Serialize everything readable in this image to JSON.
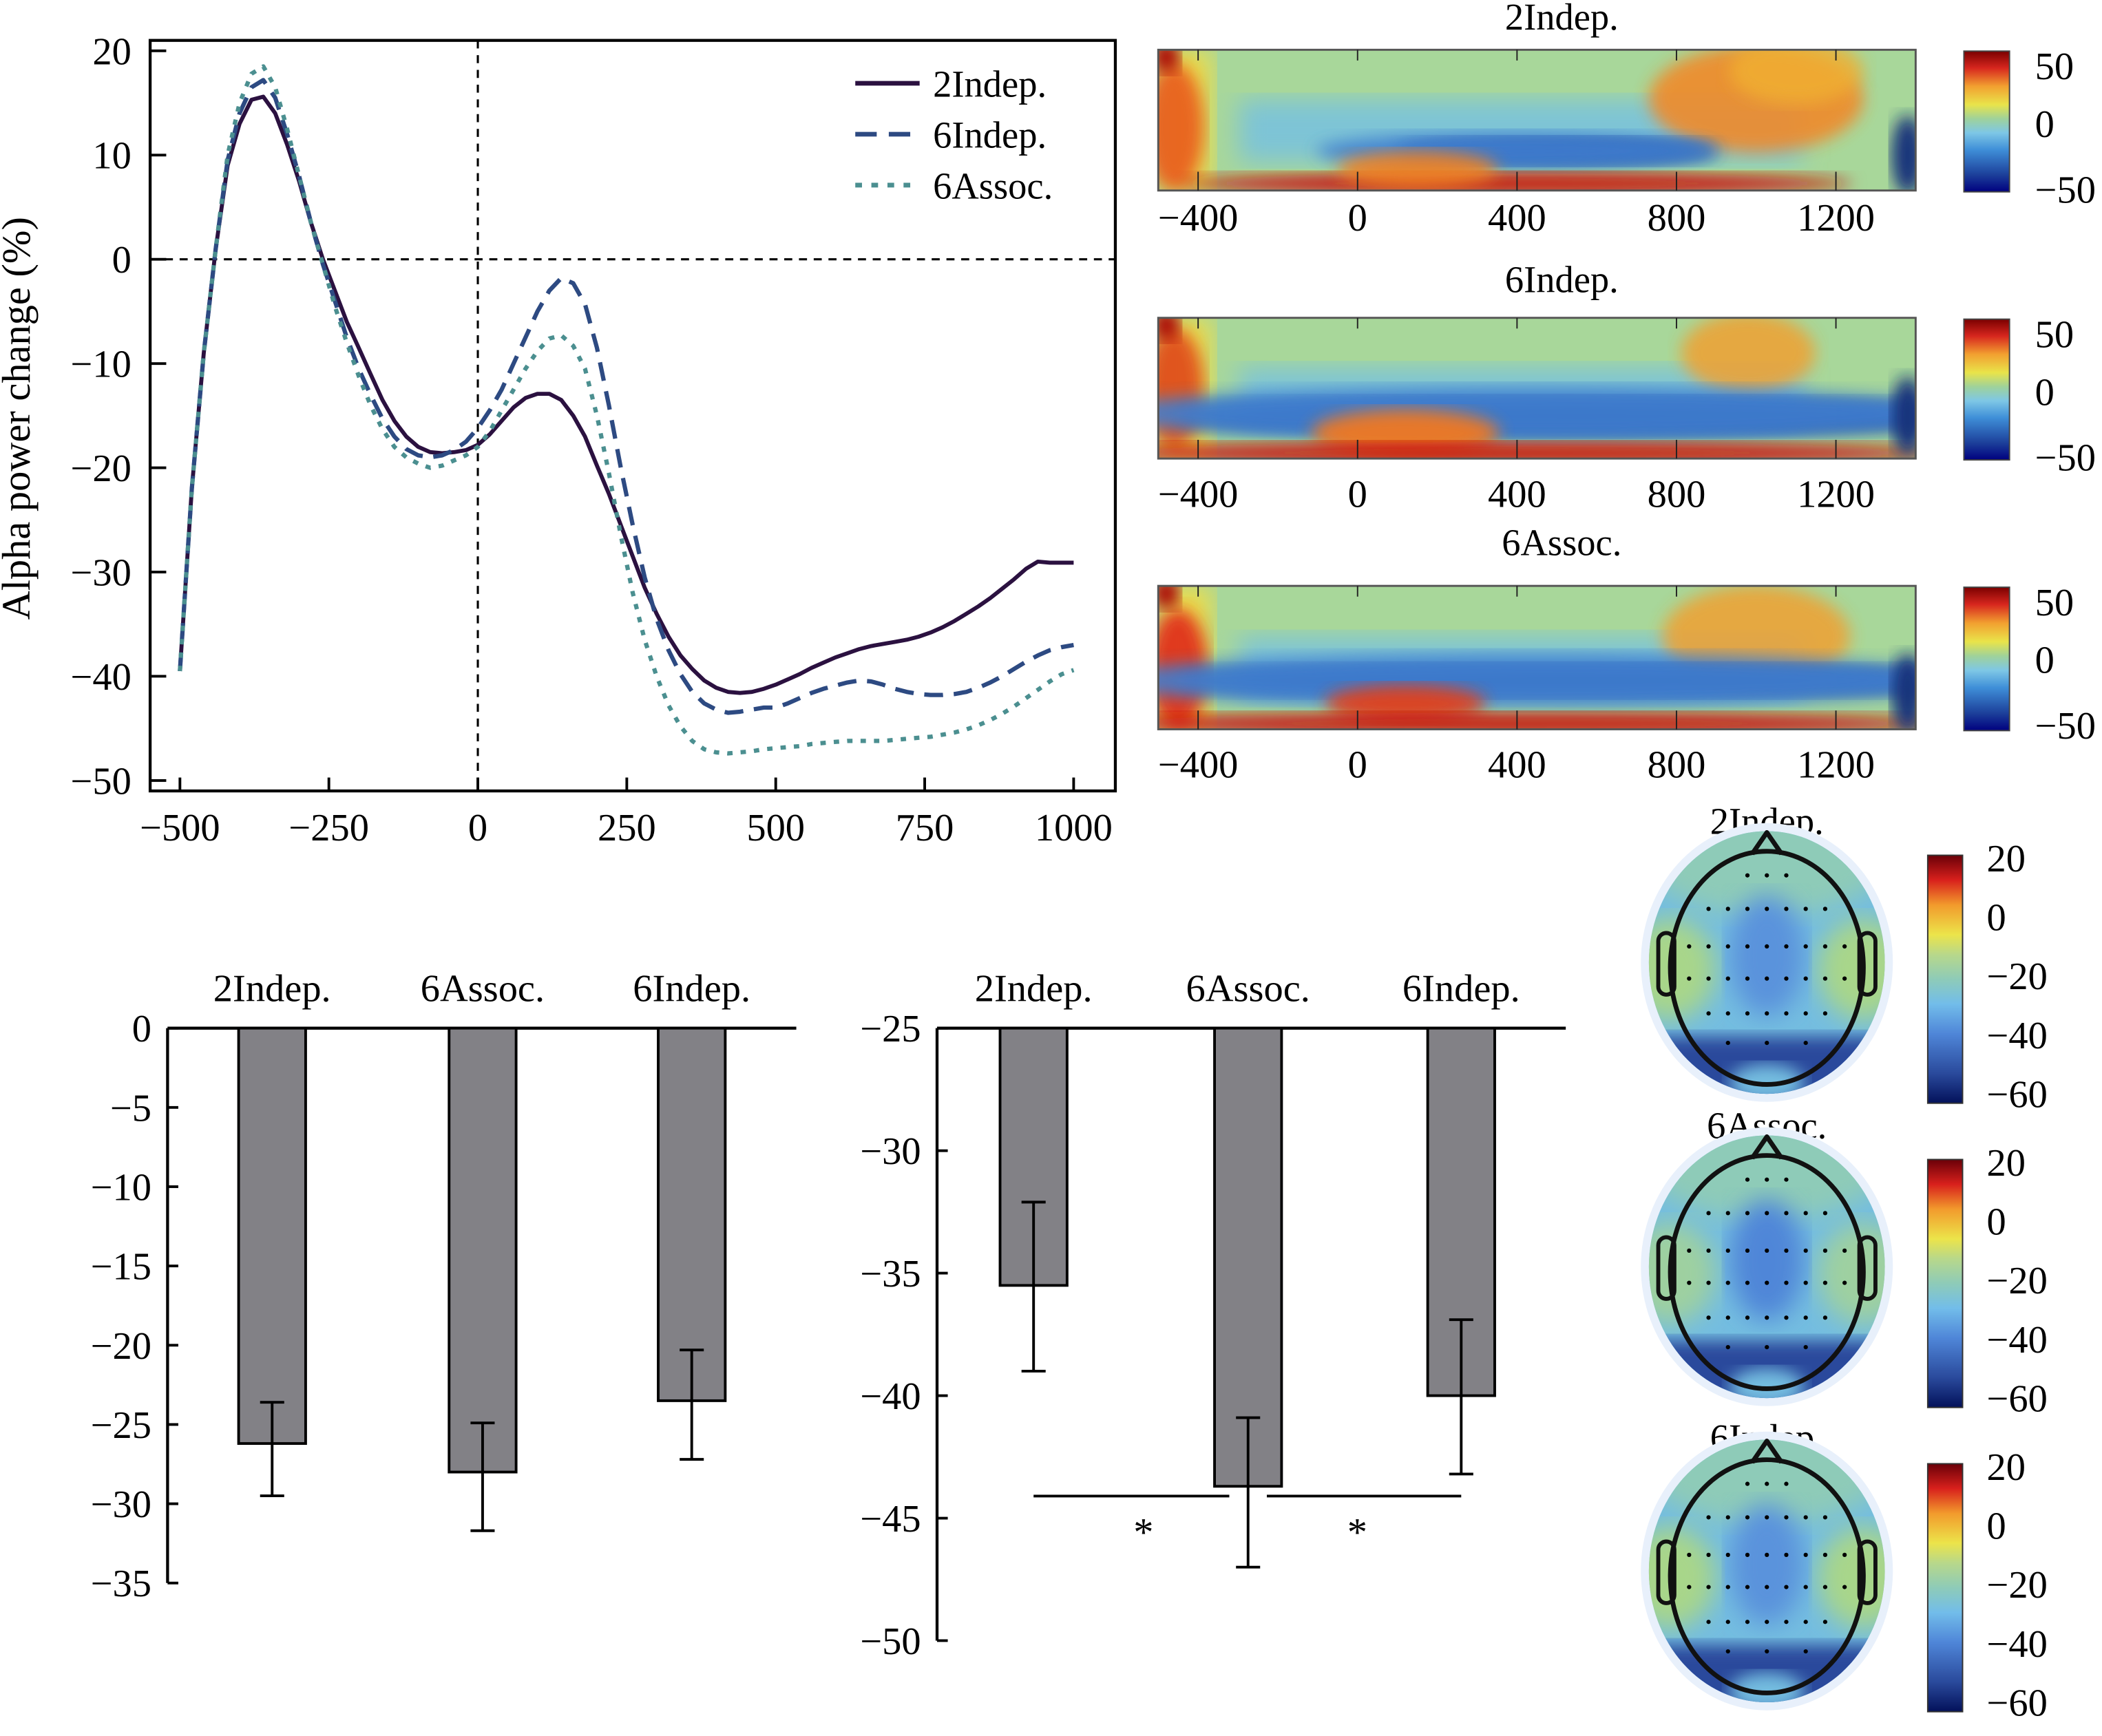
{
  "chart_data": [
    {
      "id": "line",
      "type": "line",
      "title": "",
      "xlabel": "",
      "ylabel": "Alpha power change (%)",
      "xlim": [
        -550,
        1070
      ],
      "ylim": [
        -51,
        21
      ],
      "xticks": [
        -500,
        -250,
        0,
        250,
        500,
        750,
        1000
      ],
      "yticks": [
        20,
        10,
        0,
        -10,
        -20,
        -30,
        -40,
        -50
      ],
      "reference_lines": {
        "x": 0,
        "y": 0
      },
      "legend_position": "top-right",
      "series": [
        {
          "name": "2Indep.",
          "style": "solid",
          "color": "#2b1140",
          "x": [
            -500,
            -480,
            -460,
            -440,
            -420,
            -400,
            -380,
            -360,
            -340,
            -320,
            -300,
            -280,
            -260,
            -240,
            -220,
            -200,
            -180,
            -160,
            -140,
            -120,
            -100,
            -80,
            -60,
            -40,
            -20,
            0,
            20,
            40,
            60,
            80,
            100,
            120,
            140,
            160,
            180,
            200,
            220,
            240,
            260,
            280,
            300,
            320,
            340,
            360,
            380,
            400,
            420,
            440,
            460,
            480,
            500,
            520,
            540,
            560,
            580,
            600,
            620,
            640,
            660,
            680,
            700,
            720,
            740,
            760,
            780,
            800,
            820,
            840,
            860,
            880,
            900,
            920,
            940,
            960,
            980,
            1000
          ],
          "y": [
            -39.5,
            -22,
            -9,
            1,
            9,
            13,
            15.3,
            15.6,
            14,
            11,
            7.5,
            3.5,
            0,
            -3,
            -6,
            -8.5,
            -11,
            -13.5,
            -15.5,
            -17,
            -18,
            -18.5,
            -18.6,
            -18.5,
            -18.3,
            -17.8,
            -16.8,
            -15.5,
            -14.2,
            -13.3,
            -12.9,
            -12.9,
            -13.5,
            -15,
            -17,
            -19.8,
            -22.5,
            -25.5,
            -28.5,
            -31.5,
            -34,
            -36.2,
            -38,
            -39.3,
            -40.4,
            -41.1,
            -41.5,
            -41.6,
            -41.5,
            -41.2,
            -40.8,
            -40.3,
            -39.8,
            -39.2,
            -38.7,
            -38.2,
            -37.8,
            -37.4,
            -37.1,
            -36.9,
            -36.7,
            -36.5,
            -36.2,
            -35.8,
            -35.3,
            -34.7,
            -34,
            -33.3,
            -32.5,
            -31.6,
            -30.7,
            -29.7,
            -29,
            -29.1,
            -29.1,
            -29.1
          ]
        },
        {
          "name": "6Indep.",
          "style": "dashed",
          "color": "#2d4a82",
          "x": [
            -500,
            -480,
            -460,
            -440,
            -420,
            -400,
            -380,
            -360,
            -340,
            -320,
            -300,
            -280,
            -260,
            -240,
            -220,
            -200,
            -180,
            -160,
            -140,
            -120,
            -100,
            -80,
            -60,
            -40,
            -20,
            0,
            20,
            40,
            60,
            80,
            100,
            120,
            140,
            160,
            180,
            200,
            220,
            240,
            260,
            280,
            300,
            320,
            340,
            360,
            380,
            400,
            420,
            440,
            460,
            480,
            500,
            520,
            540,
            560,
            580,
            600,
            620,
            640,
            660,
            680,
            700,
            720,
            740,
            760,
            780,
            800,
            820,
            840,
            860,
            880,
            900,
            920,
            940,
            960,
            980,
            1000
          ],
          "y": [
            -39.5,
            -22,
            -9,
            1,
            9.5,
            14,
            16.5,
            17.2,
            15.5,
            12,
            8,
            3.5,
            -0.5,
            -4,
            -7.5,
            -10.5,
            -13,
            -15.3,
            -17,
            -18.2,
            -18.8,
            -19,
            -18.8,
            -18.3,
            -17.5,
            -16.2,
            -14.5,
            -12.5,
            -10,
            -7.5,
            -5,
            -3,
            -1.8,
            -2.3,
            -4.3,
            -8.5,
            -14,
            -20,
            -25.5,
            -30.5,
            -34.5,
            -37.5,
            -39.8,
            -41.5,
            -42.6,
            -43.2,
            -43.5,
            -43.4,
            -43.2,
            -43,
            -43,
            -42.6,
            -42.1,
            -41.6,
            -41.2,
            -40.9,
            -40.6,
            -40.4,
            -40.5,
            -40.8,
            -41.2,
            -41.5,
            -41.7,
            -41.8,
            -41.8,
            -41.7,
            -41.5,
            -41.1,
            -40.6,
            -40,
            -39.3,
            -38.6,
            -38,
            -37.5,
            -37.2,
            -37
          ]
        },
        {
          "name": "6Assoc.",
          "style": "dotted",
          "color": "#4b8f90",
          "x": [
            -500,
            -480,
            -460,
            -440,
            -420,
            -400,
            -380,
            -360,
            -340,
            -320,
            -300,
            -280,
            -260,
            -240,
            -220,
            -200,
            -180,
            -160,
            -140,
            -120,
            -100,
            -80,
            -60,
            -40,
            -20,
            0,
            20,
            40,
            60,
            80,
            100,
            120,
            140,
            160,
            180,
            200,
            220,
            240,
            260,
            280,
            300,
            320,
            340,
            360,
            380,
            400,
            420,
            440,
            460,
            480,
            500,
            520,
            540,
            560,
            580,
            600,
            620,
            640,
            660,
            680,
            700,
            720,
            740,
            760,
            780,
            800,
            820,
            840,
            860,
            880,
            900,
            920,
            940,
            960,
            980,
            1000
          ],
          "y": [
            -39.5,
            -22,
            -9,
            1,
            10,
            15,
            17.8,
            18.5,
            16.5,
            12.5,
            8,
            3.5,
            -0.5,
            -4.5,
            -8,
            -11.2,
            -14,
            -16.3,
            -18,
            -19,
            -19.6,
            -20,
            -19.8,
            -19.3,
            -18.8,
            -18,
            -16.5,
            -14.5,
            -12.5,
            -10.5,
            -8.8,
            -7.6,
            -7.3,
            -8.3,
            -10.5,
            -15,
            -20.5,
            -26.5,
            -32,
            -36.5,
            -40,
            -42.8,
            -44.8,
            -46.2,
            -47,
            -47.3,
            -47.4,
            -47.3,
            -47.2,
            -47,
            -46.9,
            -46.8,
            -46.7,
            -46.5,
            -46.4,
            -46.3,
            -46.2,
            -46.2,
            -46.2,
            -46.2,
            -46.1,
            -46,
            -45.9,
            -45.8,
            -45.6,
            -45.4,
            -45.1,
            -44.7,
            -44.2,
            -43.6,
            -42.9,
            -42.1,
            -41.3,
            -40.5,
            -39.8,
            -39.4
          ]
        }
      ]
    },
    {
      "id": "spectrograms",
      "type": "heatmap",
      "panels": [
        {
          "title": "2Indep.",
          "xticks": [
            -400,
            0,
            400,
            800,
            1200
          ],
          "colorbar_ticks": [
            50,
            0,
            -50
          ],
          "clim": [
            -50,
            50
          ]
        },
        {
          "title": "6Indep.",
          "xticks": [
            -400,
            0,
            400,
            800,
            1200
          ],
          "colorbar_ticks": [
            50,
            0,
            -50
          ],
          "clim": [
            -50,
            50
          ]
        },
        {
          "title": "6Assoc.",
          "xticks": [
            -400,
            0,
            400,
            800,
            1200
          ],
          "colorbar_ticks": [
            50,
            0,
            -50
          ],
          "clim": [
            -50,
            50
          ]
        }
      ],
      "xlim": [
        -500,
        1400
      ],
      "colormap": "jet"
    },
    {
      "id": "bar_left",
      "type": "bar",
      "categories": [
        "2Indep.",
        "6Assoc.",
        "6Indep."
      ],
      "values": [
        -26.2,
        -28.0,
        -23.5
      ],
      "error_low": [
        -29.5,
        -31.7,
        -27.2
      ],
      "error_high": [
        -23.6,
        -24.9,
        -20.3
      ],
      "ylim": [
        -35,
        0
      ],
      "yticks": [
        0,
        -5,
        -10,
        -15,
        -20,
        -25,
        -30,
        -35
      ],
      "bar_color": "#828186"
    },
    {
      "id": "bar_mid",
      "type": "bar",
      "categories": [
        "2Indep.",
        "6Assoc.",
        "6Indep."
      ],
      "values": [
        -35.5,
        -43.7,
        -40.0
      ],
      "error_low": [
        -39.0,
        -47.0,
        -43.2
      ],
      "error_high": [
        -32.1,
        -40.9,
        -36.9
      ],
      "ylim": [
        -50,
        -25
      ],
      "yticks": [
        -25,
        -30,
        -35,
        -40,
        -45,
        -50
      ],
      "bar_color": "#828186",
      "significance": [
        {
          "pair": [
            "2Indep.",
            "6Assoc."
          ],
          "label": "*",
          "level": -44.1
        },
        {
          "pair": [
            "6Assoc.",
            "6Indep."
          ],
          "label": "*",
          "level": -44.1
        }
      ]
    },
    {
      "id": "topomaps",
      "type": "heatmap",
      "panels": [
        {
          "title": "2Indep.",
          "colorbar_ticks": [
            20,
            0,
            -20,
            -40,
            -60
          ]
        },
        {
          "title": "6Assoc.",
          "colorbar_ticks": [
            20,
            0,
            -20,
            -40,
            -60
          ]
        },
        {
          "title": "6Indep.",
          "colorbar_ticks": [
            20,
            0,
            -20,
            -40,
            -60
          ]
        }
      ],
      "clim": [
        -65,
        22
      ],
      "colormap": "jet"
    }
  ]
}
